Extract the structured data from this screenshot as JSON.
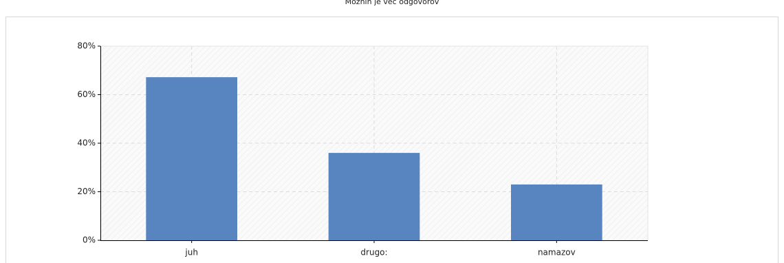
{
  "chart_data": {
    "type": "bar",
    "title": "Možnih je več odgovorov",
    "categories": [
      "juh",
      "drugo:",
      "namazov"
    ],
    "values": [
      67.2,
      36,
      23
    ],
    "color": "#5884bf",
    "ylim": [
      0,
      80
    ],
    "yticks": [
      {
        "value": 0,
        "label": "0%"
      },
      {
        "value": 20,
        "label": "20%"
      },
      {
        "value": 40,
        "label": "40%"
      },
      {
        "value": 60,
        "label": "60%"
      },
      {
        "value": 80,
        "label": "80%"
      }
    ],
    "grid": true
  }
}
